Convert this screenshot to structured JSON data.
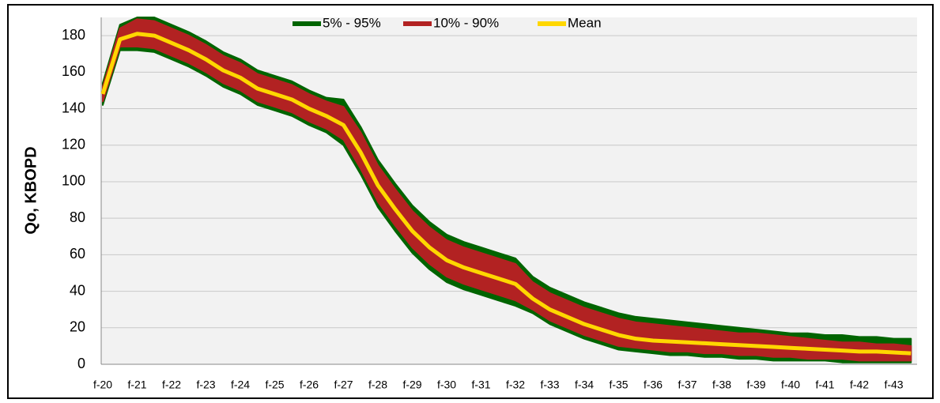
{
  "chart_data": {
    "type": "band-line",
    "y_label": "Qo, KBOPD",
    "categories": [
      "f-20",
      null,
      "f-21",
      null,
      "f-22",
      null,
      "f-23",
      null,
      "f-24",
      null,
      "f-25",
      null,
      "f-26",
      null,
      "f-27",
      null,
      "f-28",
      null,
      "f-29",
      null,
      "f-30",
      null,
      "f-31",
      null,
      "f-32",
      null,
      "f-33",
      null,
      "f-34",
      null,
      "f-35",
      null,
      "f-36",
      null,
      "f-37",
      null,
      "f-38",
      null,
      "f-39",
      null,
      "f-40",
      null,
      "f-41",
      null,
      "f-42",
      null,
      "f-43",
      null
    ],
    "ylim": [
      0,
      190
    ],
    "yticks": [
      0,
      20,
      40,
      60,
      80,
      100,
      120,
      140,
      160,
      180
    ],
    "grid": true,
    "legend": "top",
    "series": [
      {
        "name": "5% - 95%",
        "color": "#006400",
        "low": [
          142,
          172,
          172,
          171,
          167,
          163,
          158,
          152,
          148,
          142,
          139,
          136,
          131,
          127,
          120,
          104,
          86,
          73,
          61,
          52,
          45,
          41,
          38,
          35,
          32,
          28,
          22,
          18,
          14,
          11,
          8,
          7,
          6,
          5,
          5,
          4,
          4,
          3,
          3,
          2,
          2,
          2,
          2,
          1,
          1,
          1,
          1,
          1
        ],
        "high": [
          154,
          186,
          190,
          190,
          186,
          182,
          177,
          171,
          167,
          161,
          158,
          155,
          150,
          146,
          145,
          130,
          112,
          99,
          87,
          78,
          71,
          67,
          64,
          61,
          58,
          48,
          42,
          38,
          34,
          31,
          28,
          26,
          25,
          24,
          23,
          22,
          21,
          20,
          19,
          18,
          17,
          17,
          16,
          16,
          15,
          15,
          14,
          14
        ]
      },
      {
        "name": "10% - 90%",
        "color": "#b22222",
        "low": [
          144,
          174,
          174,
          173,
          169,
          165,
          160,
          154,
          150,
          144,
          141,
          138,
          133,
          129,
          123,
          107,
          89,
          76,
          64,
          55,
          48,
          44,
          41,
          38,
          35,
          30,
          24,
          20,
          16,
          13,
          10,
          9,
          8,
          7,
          7,
          6,
          6,
          5,
          5,
          4,
          4,
          3,
          3,
          3,
          2,
          2,
          2,
          2
        ],
        "high": [
          152,
          184,
          189,
          188,
          184,
          180,
          175,
          169,
          165,
          159,
          156,
          153,
          148,
          144,
          141,
          127,
          109,
          96,
          84,
          75,
          68,
          64,
          61,
          58,
          55,
          45,
          39,
          35,
          31,
          28,
          25,
          23,
          22,
          21,
          20,
          19,
          18,
          17,
          17,
          16,
          15,
          14,
          13,
          12,
          12,
          11,
          11,
          10
        ]
      },
      {
        "name": "Mean",
        "color": "#ffd700",
        "values": [
          148,
          178,
          181,
          180,
          176,
          172,
          167,
          161,
          157,
          151,
          148,
          145,
          140,
          136,
          131,
          116,
          98,
          85,
          73,
          64,
          57,
          53,
          50,
          47,
          44,
          36,
          30,
          26,
          22,
          19,
          16,
          14,
          13,
          12.5,
          12,
          11.5,
          11,
          10.5,
          10,
          9.5,
          9,
          8.5,
          8,
          7.5,
          7,
          7,
          6.5,
          6
        ]
      }
    ]
  }
}
